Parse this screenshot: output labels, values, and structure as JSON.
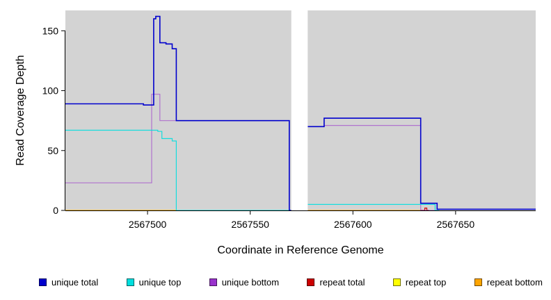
{
  "chart_data": {
    "type": "line",
    "step": true,
    "title": "",
    "xlabel": "Coordinate in Reference Genome",
    "ylabel": "Read Coverage Depth",
    "xlim": [
      2567460,
      2567689
    ],
    "ylim": [
      0,
      167
    ],
    "x_ticks": [
      2567500,
      2567550,
      2567600,
      2567650
    ],
    "y_ticks": [
      0,
      50,
      100,
      150
    ],
    "grid": false,
    "plot_bg": "#d3d3d3",
    "gap_region": {
      "x_start": 2567570,
      "x_end": 2567578,
      "color": "#ffffff"
    },
    "legend": [
      {
        "label": "unique total",
        "color": "#0000cd"
      },
      {
        "label": "unique top",
        "color": "#00dede"
      },
      {
        "label": "unique bottom",
        "color": "#9932cc"
      },
      {
        "label": "repeat total",
        "color": "#cc0000"
      },
      {
        "label": "repeat top",
        "color": "#ffff00"
      },
      {
        "label": "repeat bottom",
        "color": "#ffa500"
      }
    ],
    "series": [
      {
        "name": "repeat top",
        "color": "#ffff00",
        "width": 1.2,
        "opacity": 1,
        "segments": [
          [
            [
              2567460,
              0
            ],
            [
              2567514,
              0
            ]
          ]
        ]
      },
      {
        "name": "repeat bottom",
        "color": "#ffa500",
        "width": 1.2,
        "opacity": 1,
        "segments": [
          [
            [
              2567460,
              0
            ],
            [
              2567514,
              0
            ]
          ],
          [
            [
              2567578,
              0
            ],
            [
              2567633,
              0
            ]
          ]
        ]
      },
      {
        "name": "repeat total",
        "color": "#cc0000",
        "width": 1.2,
        "opacity": 1,
        "segments": [
          [
            [
              2567633,
              0
            ],
            [
              2567635,
              2
            ],
            [
              2567636,
              0
            ],
            [
              2567637,
              0
            ]
          ]
        ]
      },
      {
        "name": "unique bottom",
        "color": "#9932cc",
        "width": 1.2,
        "opacity": 0.6,
        "segments": [
          [
            [
              2567460,
              23
            ],
            [
              2567501,
              23
            ],
            [
              2567502,
              97
            ],
            [
              2567505,
              97
            ],
            [
              2567506,
              75
            ],
            [
              2567568,
              75
            ],
            [
              2567569,
              0
            ],
            [
              2567570,
              0
            ]
          ],
          [
            [
              2567578,
              70
            ],
            [
              2567586,
              71
            ],
            [
              2567633,
              0
            ],
            [
              2567641,
              0
            ]
          ]
        ]
      },
      {
        "name": "unique top",
        "color": "#00dede",
        "width": 1.2,
        "opacity": 0.9,
        "segments": [
          [
            [
              2567460,
              67
            ],
            [
              2567505,
              66
            ],
            [
              2567507,
              60
            ],
            [
              2567512,
              58
            ],
            [
              2567514,
              0
            ],
            [
              2567570,
              0
            ]
          ],
          [
            [
              2567578,
              5
            ],
            [
              2567640,
              0
            ],
            [
              2567642,
              0
            ]
          ]
        ]
      },
      {
        "name": "unique total",
        "color": "#0000cd",
        "width": 1.6,
        "opacity": 1,
        "segments": [
          [
            [
              2567460,
              89
            ],
            [
              2567498,
              88
            ],
            [
              2567503,
              160
            ],
            [
              2567504,
              162
            ],
            [
              2567506,
              140
            ],
            [
              2567509,
              139
            ],
            [
              2567512,
              135
            ],
            [
              2567514,
              75
            ],
            [
              2567568,
              75
            ],
            [
              2567569,
              0
            ],
            [
              2567570,
              0
            ]
          ],
          [
            [
              2567578,
              70
            ],
            [
              2567586,
              77
            ],
            [
              2567633,
              6
            ],
            [
              2567641,
              1
            ],
            [
              2567689,
              1
            ]
          ]
        ]
      }
    ]
  }
}
